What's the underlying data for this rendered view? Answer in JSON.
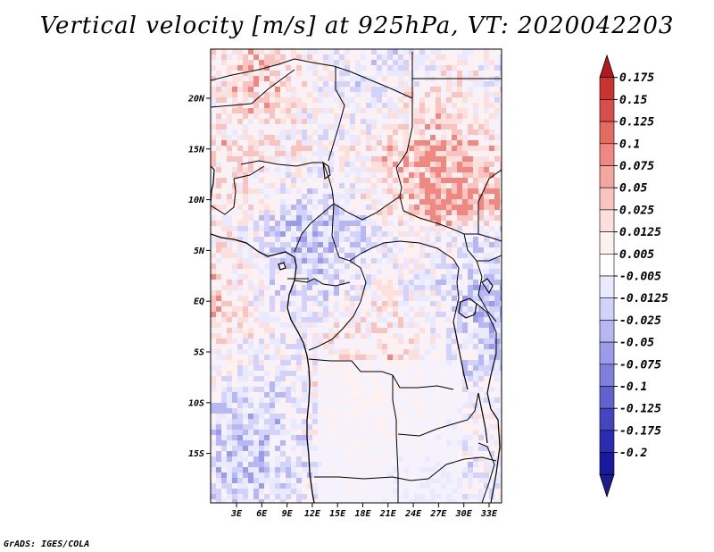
{
  "title": "Vertical velocity [m/s] at 925hPa, VT: 2020042203",
  "footer": "GrADS: IGES/COLA",
  "map": {
    "lat_labels": [
      "20N",
      "15N",
      "10N",
      "5N",
      "EQ",
      "5S",
      "10S",
      "15S"
    ],
    "lon_labels": [
      "3E",
      "6E",
      "9E",
      "12E",
      "15E",
      "18E",
      "21E",
      "24E",
      "27E",
      "30E",
      "33E"
    ]
  },
  "colorbar": {
    "labels": [
      "0.175",
      "0.15",
      "0.125",
      "0.1",
      "0.075",
      "0.05",
      "0.025",
      "0.0125",
      "0.005",
      "-0.005",
      "-0.0125",
      "-0.025",
      "-0.05",
      "-0.075",
      "-0.1",
      "-0.125",
      "-0.175",
      "-0.2"
    ],
    "colors": [
      "#b3191c",
      "#c93432",
      "#d84e4a",
      "#e46a62",
      "#ee8880",
      "#f4a6a0",
      "#f9c4c0",
      "#fce0dd",
      "#fff1ef",
      "#ffffff",
      "#e9e9ff",
      "#d2d2fb",
      "#b7b7f3",
      "#9b9be9",
      "#7f7fdd",
      "#6262cf",
      "#4545c0",
      "#2c2cb0",
      "#1a1aa0",
      "#1c1c8c"
    ]
  }
}
